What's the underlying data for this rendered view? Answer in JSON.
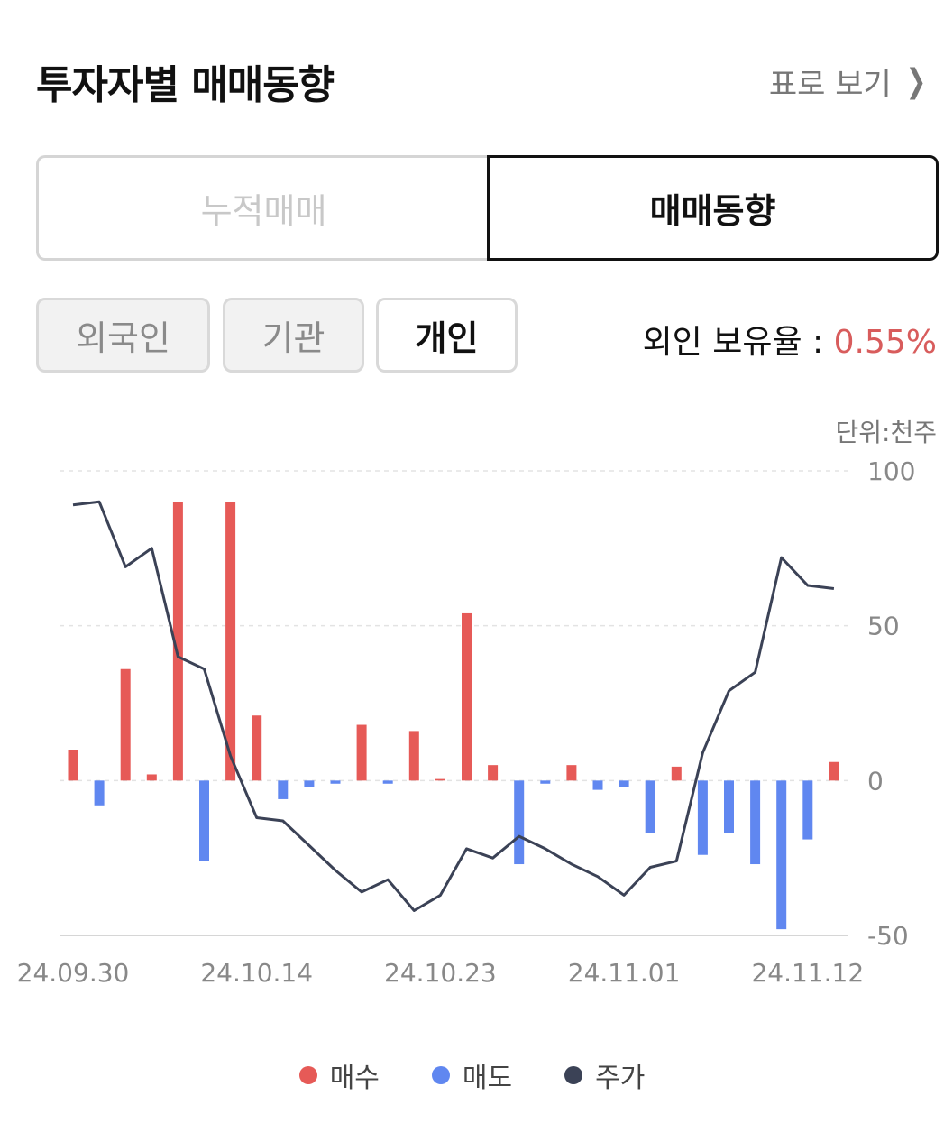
{
  "header": {
    "title": "투자자별 매매동향",
    "view_table": "표로 보기",
    "chevron_icon": "chevron-right-icon"
  },
  "segment": {
    "cumulative": "누적매매",
    "trend": "매매동향",
    "selected": "매매동향"
  },
  "chips": [
    {
      "label": "외국인",
      "active": false
    },
    {
      "label": "기관",
      "active": false
    },
    {
      "label": "개인",
      "active": true
    }
  ],
  "ownership": {
    "label": "외인 보유율 : ",
    "value": "0.55%"
  },
  "unit": "단위:천주",
  "colors": {
    "buy": "#e65a57",
    "sell": "#6087f0",
    "price": "#3b4256"
  },
  "chart_data": {
    "type": "bar",
    "ylim": [
      -50,
      100
    ],
    "yticks": [
      100,
      50,
      0,
      -50
    ],
    "xtick_labels": [
      "24.09.30",
      "24.10.14",
      "24.10.23",
      "24.11.01",
      "24.11.12"
    ],
    "xtick_index": [
      0,
      7,
      14,
      21,
      28
    ],
    "series": [
      {
        "name": "매수",
        "values": [
          10,
          0,
          36,
          2,
          90,
          0,
          90,
          21,
          0,
          0,
          0,
          18,
          0,
          16,
          0.5,
          54,
          5,
          0,
          0,
          5,
          0,
          0,
          0,
          4.5,
          0,
          0,
          0,
          0,
          0,
          6
        ]
      },
      {
        "name": "매도",
        "values": [
          0,
          -8,
          0,
          0,
          0,
          -26,
          0,
          0,
          -6,
          -2,
          -1,
          0,
          -1,
          0,
          0,
          0,
          0,
          -27,
          -1,
          0,
          -3,
          -2,
          -17,
          0,
          -24,
          -17,
          -27,
          -48,
          -19,
          0
        ]
      },
      {
        "name": "주가",
        "values": [
          89,
          90,
          69,
          75,
          40,
          36,
          8,
          -12,
          -13,
          -21,
          -29,
          -36,
          -32,
          -42,
          -37,
          -22,
          -25,
          -18,
          -22,
          -27,
          -31,
          -37,
          -28,
          -26,
          9,
          29,
          35,
          72,
          63,
          62
        ]
      }
    ],
    "grid": true,
    "legend": "bottom"
  }
}
